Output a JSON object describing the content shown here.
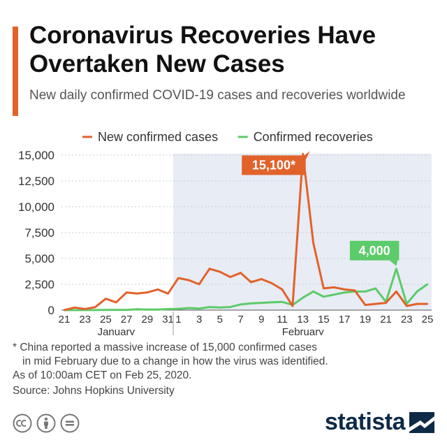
{
  "header": {
    "title": "Coronavirus Recoveries Have Overtaken New Cases",
    "subtitle": "New daily confirmed COVID-19 cases and recoveries worldwide"
  },
  "footnotes": {
    "line1": "* China reported a massive increase of 15,000 confirmed cases",
    "line2": "in mid February due to a change in how the virus was identified.",
    "line3": "As of 10:00am CET on Feb 25, 2020."
  },
  "source": "Source: Johns Hopkins University",
  "brand": {
    "name": "statista"
  },
  "colors": {
    "accent": "#e2622b",
    "cases": "#e2622b",
    "recoveries": "#5ccb6a",
    "shade": "#e8ecf4",
    "brand": "#0e2a47"
  },
  "icons": [
    "creative-commons-icon",
    "attribution-icon",
    "no-derivatives-icon",
    "statista-logo-icon"
  ],
  "chart_data": {
    "type": "line",
    "x": [
      "21",
      "22",
      "23",
      "24",
      "25",
      "26",
      "27",
      "28",
      "29",
      "30",
      "31",
      "1",
      "2",
      "3",
      "4",
      "5",
      "6",
      "7",
      "8",
      "9",
      "10",
      "11",
      "12",
      "13",
      "14",
      "15",
      "16",
      "17",
      "18",
      "19",
      "20",
      "21",
      "22",
      "23",
      "24",
      "25"
    ],
    "x_tick_labels": [
      "21",
      "23",
      "25",
      "27",
      "29",
      "31",
      "1",
      "3",
      "5",
      "7",
      "9",
      "11",
      "13",
      "15",
      "17",
      "19",
      "21",
      "23",
      "25"
    ],
    "month_labels": [
      "January",
      "February"
    ],
    "ylim": [
      0,
      15000
    ],
    "y_ticks": [
      0,
      2500,
      5000,
      7500,
      10000,
      12500,
      15000
    ],
    "y_tick_labels": [
      "0",
      "2,500",
      "5,000",
      "7,500",
      "10,000",
      "12,500",
      "15,000"
    ],
    "grid": true,
    "legend_position": "top",
    "shaded_region": {
      "from": "1",
      "to": "25",
      "month": "February"
    },
    "series": [
      {
        "name": "New confirmed cases",
        "color": "#e2622b",
        "values": [
          0,
          250,
          100,
          300,
          1100,
          750,
          1700,
          1600,
          1700,
          2000,
          1600,
          3100,
          2900,
          2500,
          4000,
          3700,
          3200,
          3600,
          2700,
          3000,
          2600,
          2000,
          400,
          15100,
          6500,
          2100,
          2200,
          2000,
          1900,
          500,
          600,
          700,
          1800,
          400,
          600,
          600
        ]
      },
      {
        "name": "Confirmed recoveries",
        "color": "#5ccb6a",
        "values": [
          0,
          0,
          10,
          10,
          20,
          30,
          20,
          90,
          50,
          50,
          100,
          120,
          200,
          150,
          300,
          250,
          300,
          550,
          650,
          700,
          750,
          800,
          500,
          1200,
          1800,
          1300,
          1500,
          1700,
          1800,
          1800,
          2100,
          800,
          4000,
          600,
          1800,
          2500
        ]
      }
    ],
    "annotations": [
      {
        "label": "15,100*",
        "series": 0,
        "index": 23
      },
      {
        "label": "4,000",
        "series": 1,
        "index": 32
      }
    ]
  }
}
